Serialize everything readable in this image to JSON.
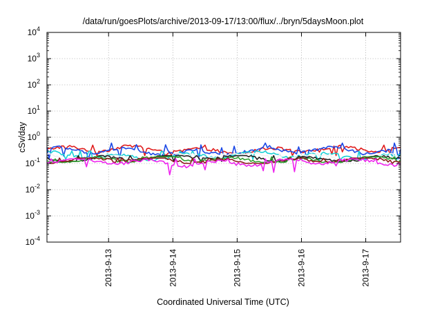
{
  "chart_data": {
    "type": "line",
    "title": "/data/run/goesPlots/archive/2013-09-17/13:00/flux/../bryn/5daysMoon.plot",
    "xlabel": "Coordinated Universal Time (UTC)",
    "ylabel": "cSv/day",
    "yscale": "log",
    "ylim": [
      0.0001,
      10000
    ],
    "xlim": [
      "2013-09-12 01:00",
      "2013-09-17 13:00"
    ],
    "grid": true,
    "x_ticks": [
      "2013-9-13",
      "2013-9-14",
      "2013-9-15",
      "2013-9-16",
      "2013-9-17"
    ],
    "y_ticks": [
      {
        "base": "10",
        "exp": "4",
        "value": 10000
      },
      {
        "base": "10",
        "exp": "3",
        "value": 1000
      },
      {
        "base": "10",
        "exp": "2",
        "value": 100
      },
      {
        "base": "10",
        "exp": "1",
        "value": 10
      },
      {
        "base": "10",
        "exp": "0",
        "value": 1
      },
      {
        "base": "10",
        "exp": "-1",
        "value": 0.1
      },
      {
        "base": "10",
        "exp": "-2",
        "value": 0.01
      },
      {
        "base": "10",
        "exp": "-3",
        "value": 0.001
      },
      {
        "base": "10",
        "exp": "-4",
        "value": 0.0001
      }
    ],
    "series": [
      {
        "color": "#e01c1c",
        "typical": 0.33,
        "min": 0.2,
        "max": 0.5
      },
      {
        "color": "#1a47e6",
        "typical": 0.29,
        "min": 0.15,
        "max": 0.6
      },
      {
        "color": "#1ad0d6",
        "typical": 0.2,
        "min": 0.13,
        "max": 0.3
      },
      {
        "color": "#f2f2f2",
        "typical": 0.18,
        "min": 0.12,
        "max": 0.24
      },
      {
        "color": "#222222",
        "typical": 0.16,
        "min": 0.12,
        "max": 0.2
      },
      {
        "color": "#2f9e2f",
        "typical": 0.14,
        "min": 0.11,
        "max": 0.18
      },
      {
        "color": "#8b1a1a",
        "typical": 0.13,
        "min": 0.1,
        "max": 0.16
      },
      {
        "color": "#ee22ee",
        "typical": 0.11,
        "min": 0.035,
        "max": 0.15
      }
    ]
  }
}
